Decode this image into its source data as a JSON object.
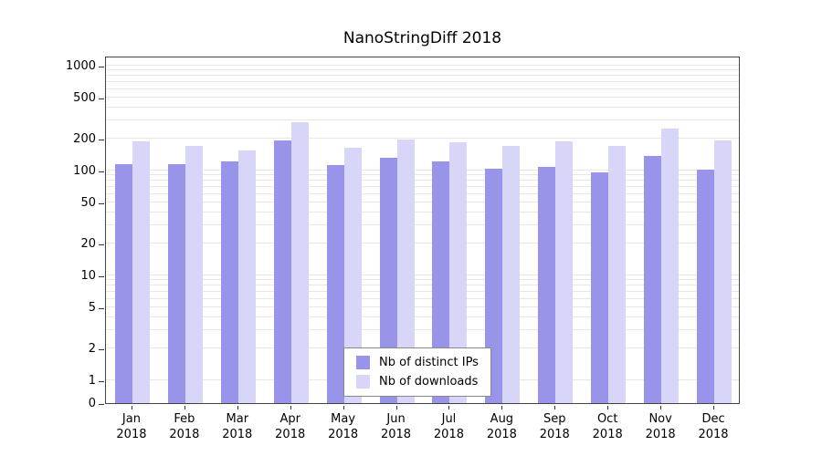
{
  "chart_data": {
    "type": "bar",
    "title": "NanoStringDiff 2018",
    "scale": "log",
    "grid": true,
    "legend_position": "bottom-center",
    "year": "2018",
    "categories": [
      "Jan",
      "Feb",
      "Mar",
      "Apr",
      "May",
      "Jun",
      "Jul",
      "Aug",
      "Sep",
      "Oct",
      "Nov",
      "Dec"
    ],
    "y_ticks": [
      0,
      1,
      2,
      5,
      10,
      20,
      50,
      100,
      200,
      500,
      1000
    ],
    "ylim": [
      0,
      1200
    ],
    "series": [
      {
        "name": "Nb of distinct IPs",
        "color": "#9794ea",
        "values": [
          115,
          115,
          122,
          192,
          112,
          132,
          122,
          105,
          108,
          97,
          138,
          102
        ]
      },
      {
        "name": "Nb of downloads",
        "color": "#d8d6f8",
        "values": [
          190,
          172,
          155,
          290,
          165,
          196,
          185,
          172,
          188,
          172,
          252,
          192
        ]
      }
    ]
  }
}
